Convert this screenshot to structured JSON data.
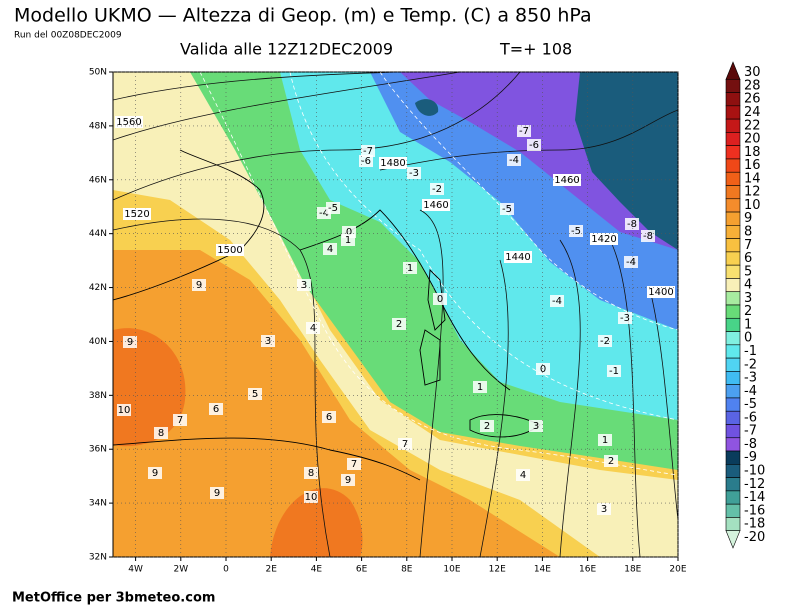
{
  "header": {
    "title": "Modello UKMO — Altezza di Geop. (m) e Temp. (C) a 850 hPa",
    "run": "Run del 00Z08DEC2009",
    "valid": "Valida alle 12Z12DEC2009",
    "lead": "T=+ 108"
  },
  "footer": "MetOffice per 3bmeteo.com",
  "axes": {
    "lat": [
      "50N",
      "48N",
      "46N",
      "44N",
      "42N",
      "40N",
      "38N",
      "36N",
      "34N",
      "32N"
    ],
    "lon": [
      "4W",
      "2W",
      "0",
      "2E",
      "4E",
      "6E",
      "8E",
      "10E",
      "12E",
      "14E",
      "16E",
      "18E",
      "20E"
    ]
  },
  "colorbar": [
    {
      "label": "30",
      "color": "#5a0a0a"
    },
    {
      "label": "28",
      "color": "#741010"
    },
    {
      "label": "26",
      "color": "#8e1010"
    },
    {
      "label": "24",
      "color": "#a81212"
    },
    {
      "label": "22",
      "color": "#c41818"
    },
    {
      "label": "20",
      "color": "#dc2020"
    },
    {
      "label": "18",
      "color": "#ee3020"
    },
    {
      "label": "16",
      "color": "#f04818"
    },
    {
      "label": "14",
      "color": "#f06018"
    },
    {
      "label": "12",
      "color": "#f07820"
    },
    {
      "label": "10",
      "color": "#f48c2c"
    },
    {
      "label": "9",
      "color": "#f5a030"
    },
    {
      "label": "8",
      "color": "#f7b038"
    },
    {
      "label": "7",
      "color": "#f8c040"
    },
    {
      "label": "6",
      "color": "#f8d050"
    },
    {
      "label": "5",
      "color": "#f8e070"
    },
    {
      "label": "4",
      "color": "#f8f0b8"
    },
    {
      "label": "3",
      "color": "#a8eca0"
    },
    {
      "label": "2",
      "color": "#68dc78"
    },
    {
      "label": "1",
      "color": "#48d488"
    },
    {
      "label": "0",
      "color": "#80f0e0"
    },
    {
      "label": "-1",
      "color": "#60e8ec"
    },
    {
      "label": "-2",
      "color": "#50d4f2"
    },
    {
      "label": "-3",
      "color": "#40bcf2"
    },
    {
      "label": "-4",
      "color": "#4ca0f0"
    },
    {
      "label": "-5",
      "color": "#5082f0"
    },
    {
      "label": "-6",
      "color": "#5a64e4"
    },
    {
      "label": "-7",
      "color": "#7052e0"
    },
    {
      "label": "-8",
      "color": "#9054e0"
    },
    {
      "label": "-9",
      "color": "#0a3c5c"
    },
    {
      "label": "-10",
      "color": "#1a5c7c"
    },
    {
      "label": "-12",
      "color": "#2a7c8c"
    },
    {
      "label": "-14",
      "color": "#40a098"
    },
    {
      "label": "-16",
      "color": "#64c0a8"
    },
    {
      "label": "-18",
      "color": "#a4e0c0"
    },
    {
      "label": "-20",
      "color": "#d4f2dc"
    }
  ],
  "contour_labels": {
    "height": [
      "1560",
      "1520",
      "1500",
      "1480",
      "1460",
      "1440",
      "1460",
      "1420",
      "1400"
    ],
    "temperature": [
      "-7",
      "-6",
      "-3",
      "-2",
      "-4",
      "-5",
      "0",
      "1",
      "4",
      "1",
      "0",
      "2",
      "3",
      "4",
      "3",
      "9",
      "9",
      "5",
      "6",
      "7",
      "10",
      "8",
      "6",
      "7",
      "8",
      "9",
      "9",
      "9",
      "10",
      "1",
      "2",
      "3",
      "4",
      "3",
      "0",
      "1",
      "2",
      "-1",
      "-2",
      "-3",
      "-4",
      "-4",
      "-5",
      "-5",
      "-4",
      "-6",
      "-7",
      "-8",
      "-8",
      "7"
    ]
  }
}
